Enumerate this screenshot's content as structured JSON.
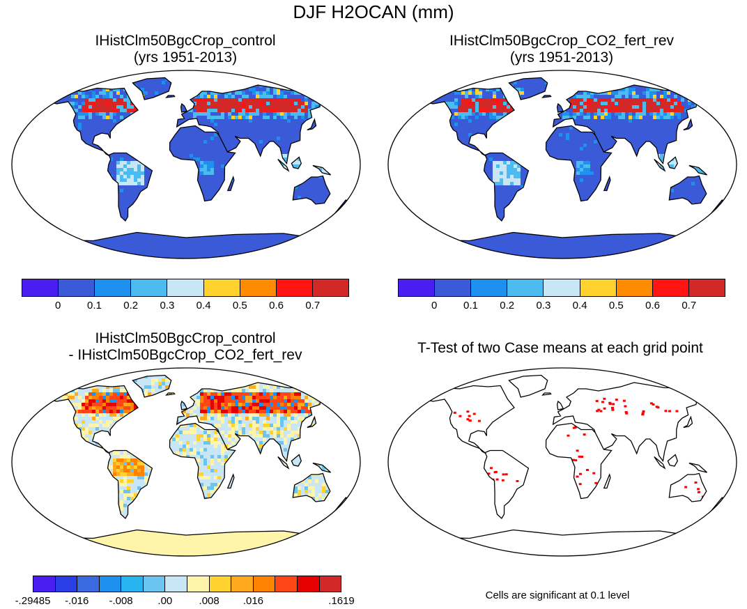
{
  "title": "DJF H2OCAN (mm)",
  "panels": [
    {
      "id": "tl",
      "title_line1": "IHistClm50BgcCrop_control",
      "title_line2": "(yrs 1951-2013)"
    },
    {
      "id": "tr",
      "title_line1": "IHistClm50BgcCrop_CO2_fert_rev",
      "title_line2": "(yrs 1951-2013)"
    },
    {
      "id": "bl",
      "title_line1": "IHistClm50BgcCrop_control",
      "title_line2": "- IHistClm50BgcCrop_CO2_fert_rev"
    },
    {
      "id": "br",
      "title_line1": "T-Test of two Case means at each grid point",
      "title_line2": ""
    }
  ],
  "colorbar_abs": {
    "colors": [
      "#4a1ef0",
      "#3a5ad8",
      "#1e90ee",
      "#4cbcf0",
      "#c8e6f5",
      "#ffd22e",
      "#ff8c00",
      "#ff1414",
      "#d22828"
    ],
    "labels": [
      "0",
      "0.1",
      "0.2",
      "0.3",
      "0.4",
      "0.5",
      "0.6",
      "0.7"
    ]
  },
  "colorbar_diff": {
    "colors": [
      "#4a1ef0",
      "#2a3ee6",
      "#3a6ae0",
      "#1e90ee",
      "#28b4ee",
      "#6cc4f0",
      "#c8e6f5",
      "#fff5aa",
      "#ffd22e",
      "#ffaa1e",
      "#ff8200",
      "#ff4614",
      "#e60000",
      "#d22828"
    ],
    "labels": [
      "-.29485",
      "-.016",
      "-.008",
      ".00",
      ".008",
      ".016",
      ".1619"
    ]
  },
  "footnote": "Cells are significant at 0.1 level",
  "chart_data": [
    {
      "type": "heatmap",
      "title": "IHistClm50BgcCrop_control",
      "subtitle": "(yrs 1951-2013)",
      "variable": "DJF H2OCAN (mm)",
      "levels": [
        0,
        0.1,
        0.2,
        0.3,
        0.4,
        0.5,
        0.6,
        0.7
      ]
    },
    {
      "type": "heatmap",
      "title": "IHistClm50BgcCrop_CO2_fert_rev",
      "subtitle": "(yrs 1951-2013)",
      "variable": "DJF H2OCAN (mm)",
      "levels": [
        0,
        0.1,
        0.2,
        0.3,
        0.4,
        0.5,
        0.6,
        0.7
      ]
    },
    {
      "type": "heatmap",
      "title": "IHistClm50BgcCrop_control - IHistClm50BgcCrop_CO2_fert_rev",
      "levels": [
        -0.29485,
        -0.016,
        -0.008,
        0.0,
        0.008,
        0.016,
        0.1619
      ]
    },
    {
      "type": "heatmap",
      "title": "T-Test of two Case means at each grid point",
      "annotation": "Cells are significant at 0.1 level",
      "significance_level": 0.1
    }
  ]
}
